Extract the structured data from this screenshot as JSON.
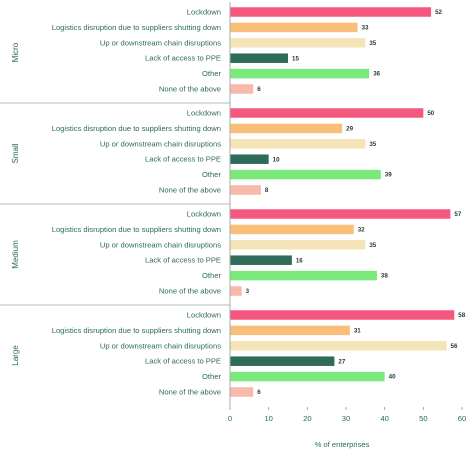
{
  "chart_data": {
    "type": "bar",
    "orientation": "horizontal",
    "xlabel": "% of enterprises",
    "xlim": [
      0,
      60
    ],
    "xticks": [
      0,
      10,
      20,
      30,
      40,
      50,
      60
    ],
    "categories": [
      "Lockdown",
      "Logistics disruption due to suppliers shutting down",
      "Up or downstream chain disruptions",
      "Lack of access to PPE",
      "Other",
      "None of the above"
    ],
    "colors": [
      "#f5587f",
      "#f9bf78",
      "#f5e4b8",
      "#2e6b59",
      "#7be87b",
      "#f8b8aa"
    ],
    "groups": [
      {
        "name": "Micro",
        "values": [
          52,
          33,
          35,
          15,
          36,
          6
        ]
      },
      {
        "name": "Small",
        "values": [
          50,
          29,
          35,
          10,
          39,
          8
        ]
      },
      {
        "name": "Medium",
        "values": [
          57,
          32,
          35,
          16,
          38,
          3
        ]
      },
      {
        "name": "Large",
        "values": [
          58,
          31,
          56,
          27,
          40,
          6
        ]
      }
    ],
    "grid": false
  }
}
